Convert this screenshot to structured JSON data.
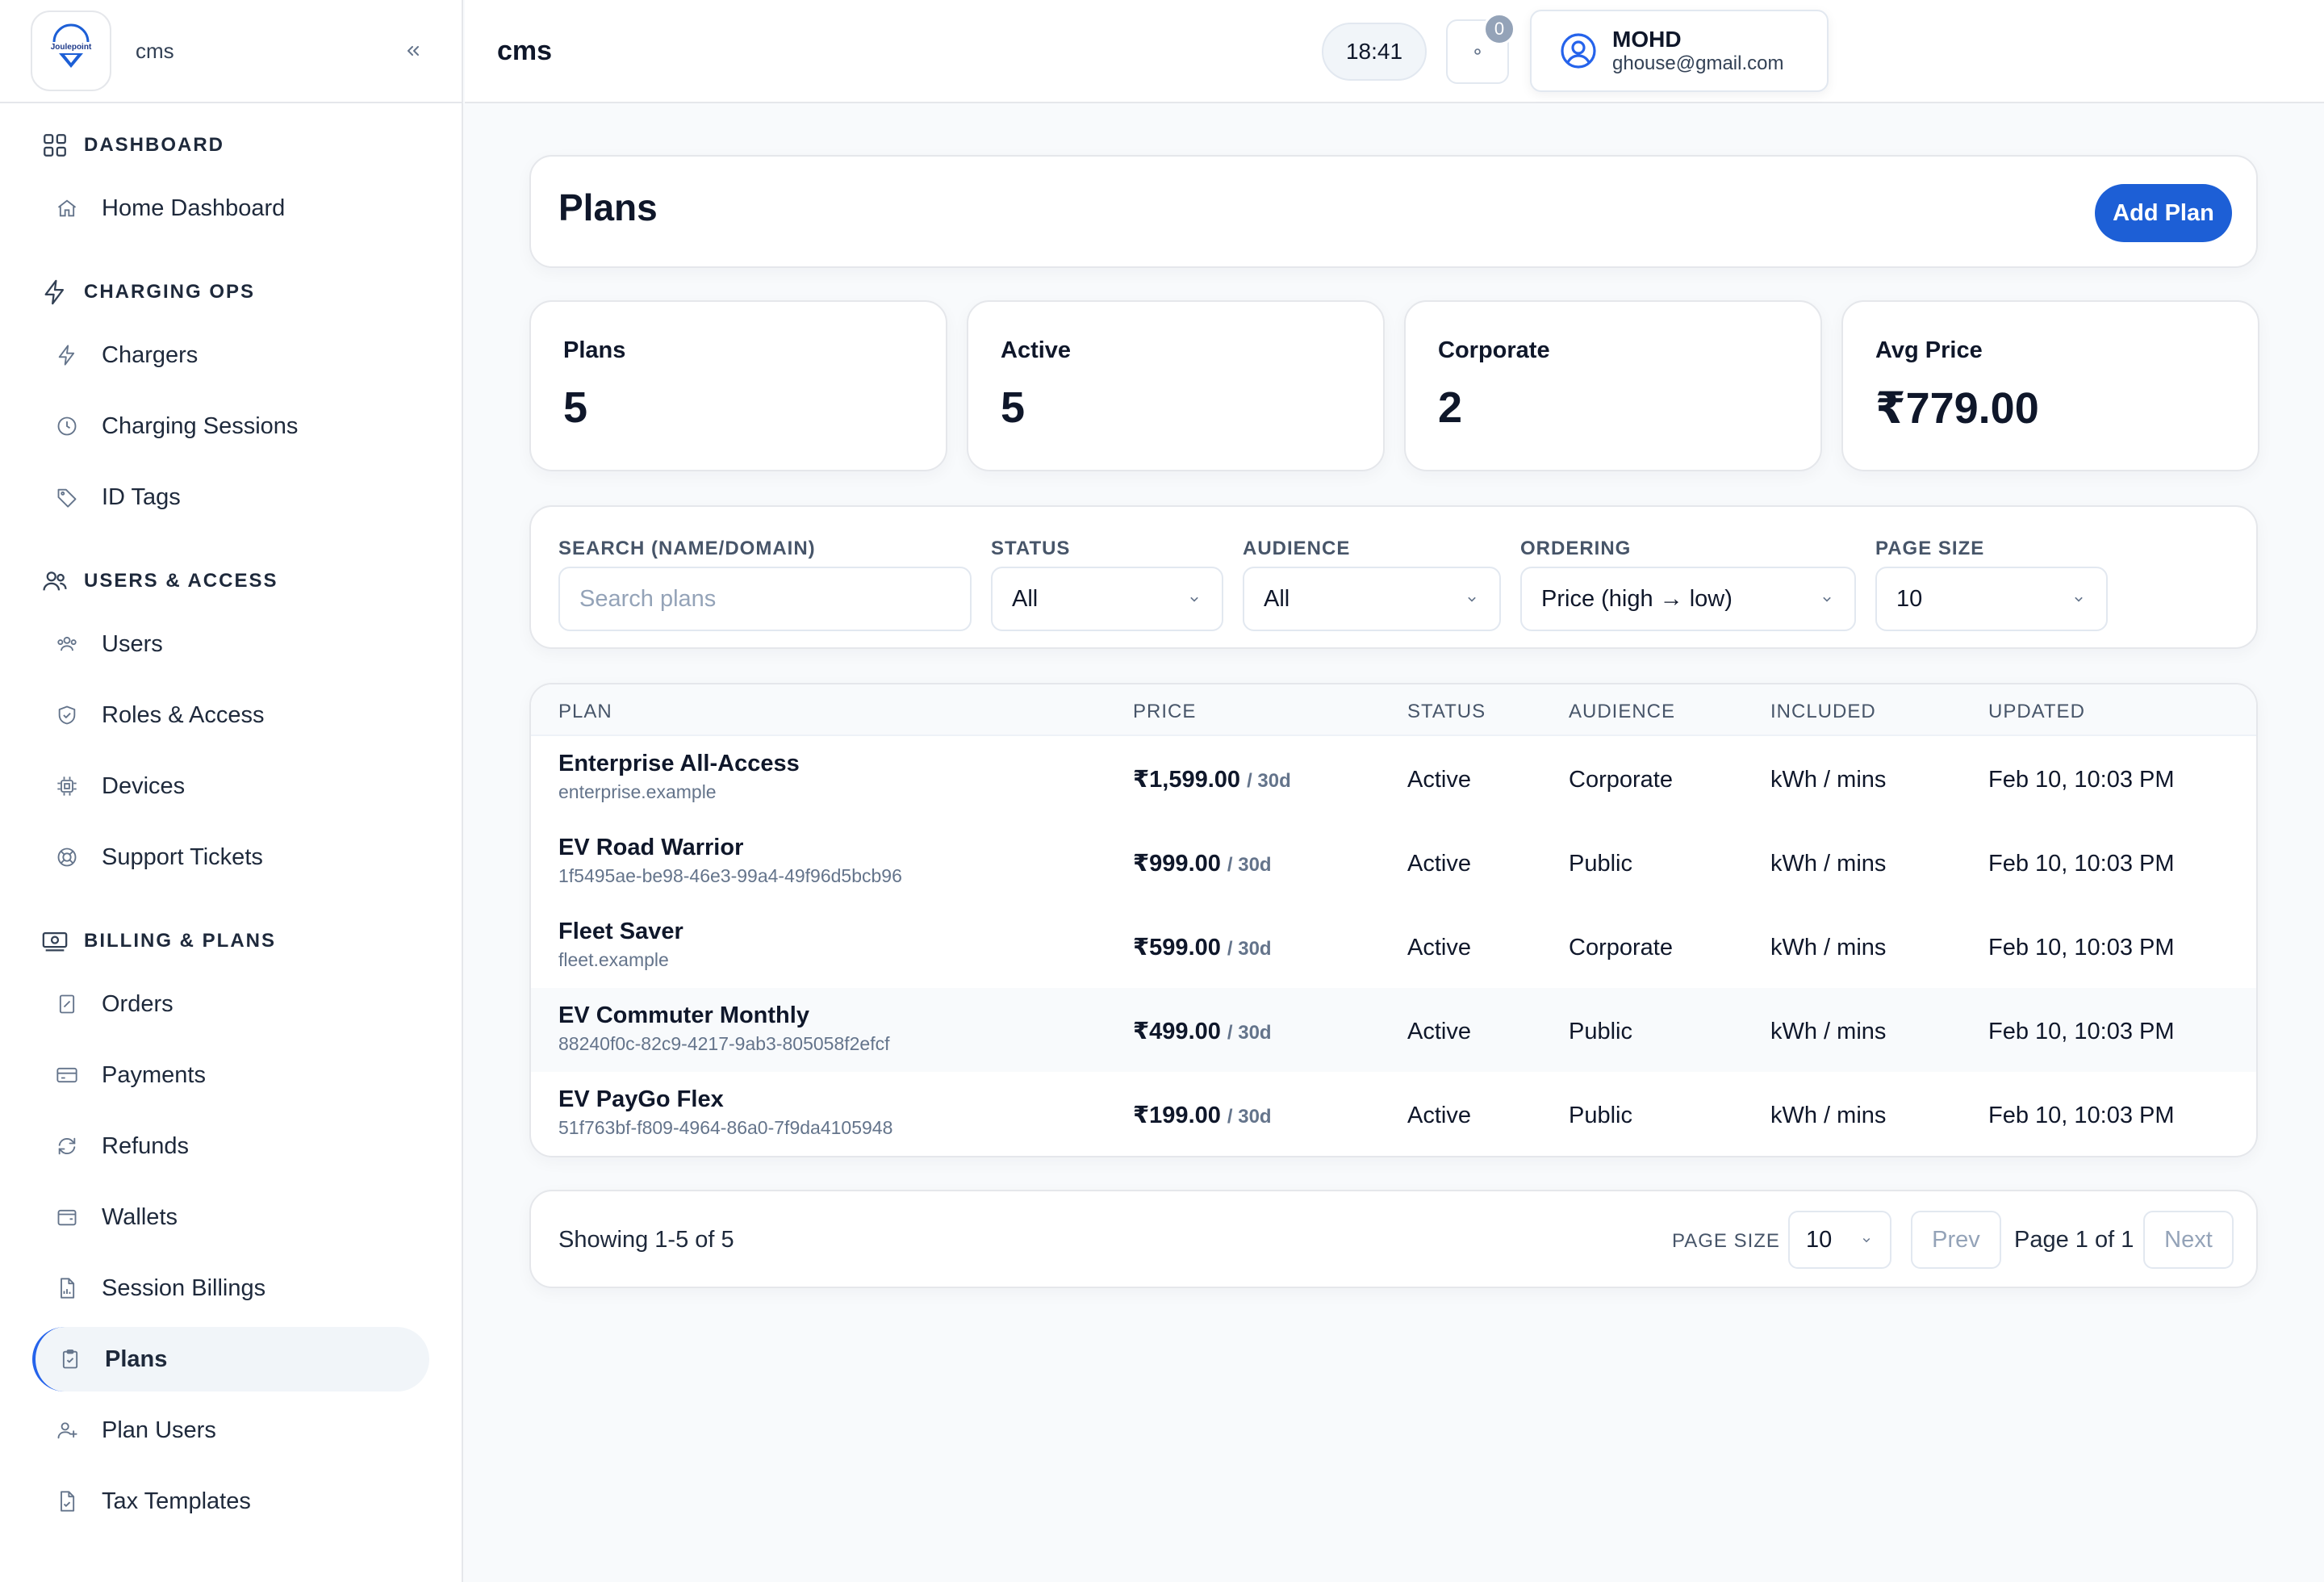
{
  "brand": {
    "logo_text": "Joulepoint",
    "name": "cms"
  },
  "sidebar": {
    "sections": [
      {
        "title": "DASHBOARD",
        "icon": "grid-icon",
        "items": [
          {
            "label": "Home Dashboard",
            "icon": "home-icon"
          }
        ]
      },
      {
        "title": "CHARGING OPS",
        "icon": "bolt-icon",
        "items": [
          {
            "label": "Chargers",
            "icon": "bolt-icon"
          },
          {
            "label": "Charging Sessions",
            "icon": "clock-icon"
          },
          {
            "label": "ID Tags",
            "icon": "tag-icon"
          }
        ]
      },
      {
        "title": "USERS & ACCESS",
        "icon": "users-icon",
        "items": [
          {
            "label": "Users",
            "icon": "users-icon"
          },
          {
            "label": "Roles & Access",
            "icon": "shield-icon"
          },
          {
            "label": "Devices",
            "icon": "chip-icon"
          },
          {
            "label": "Support Tickets",
            "icon": "lifebuoy-icon"
          }
        ]
      },
      {
        "title": "BILLING & PLANS",
        "icon": "cash-icon",
        "items": [
          {
            "label": "Orders",
            "icon": "receipt-icon"
          },
          {
            "label": "Payments",
            "icon": "card-icon"
          },
          {
            "label": "Refunds",
            "icon": "refresh-icon"
          },
          {
            "label": "Wallets",
            "icon": "wallet-icon"
          },
          {
            "label": "Session Billings",
            "icon": "file-chart-icon"
          },
          {
            "label": "Plans",
            "icon": "clipboard-icon",
            "active": true
          },
          {
            "label": "Plan Users",
            "icon": "user-plus-icon"
          },
          {
            "label": "Tax Templates",
            "icon": "file-check-icon"
          }
        ]
      }
    ]
  },
  "topbar": {
    "title": "cms",
    "time": "18:41",
    "notifications": "0",
    "user": {
      "name": "MOHD",
      "email": "ghouse@gmail.com"
    }
  },
  "header": {
    "title": "Plans",
    "add_label": "Add Plan"
  },
  "stats": [
    {
      "label": "Plans",
      "value": "5"
    },
    {
      "label": "Active",
      "value": "5"
    },
    {
      "label": "Corporate",
      "value": "2"
    },
    {
      "label": "Avg Price",
      "value": "₹779.00"
    }
  ],
  "filters": {
    "search": {
      "label": "SEARCH (NAME/DOMAIN)",
      "placeholder": "Search plans",
      "value": ""
    },
    "status": {
      "label": "STATUS",
      "value": "All"
    },
    "audience": {
      "label": "AUDIENCE",
      "value": "All"
    },
    "ordering": {
      "label": "ORDERING",
      "value": "Price (high → low)"
    },
    "page_size": {
      "label": "PAGE SIZE",
      "value": "10"
    }
  },
  "table": {
    "columns": [
      "PLAN",
      "PRICE",
      "STATUS",
      "AUDIENCE",
      "INCLUDED",
      "UPDATED"
    ],
    "rows": [
      {
        "name": "Enterprise All-Access",
        "sub": "enterprise.example",
        "price": "₹1,599.00",
        "period": "/ 30d",
        "status": "Active",
        "audience": "Corporate",
        "included": "kWh / mins",
        "updated": "Feb 10, 10:03 PM"
      },
      {
        "name": "EV Road Warrior",
        "sub": "1f5495ae-be98-46e3-99a4-49f96d5bcb96",
        "price": "₹999.00",
        "period": "/ 30d",
        "status": "Active",
        "audience": "Public",
        "included": "kWh / mins",
        "updated": "Feb 10, 10:03 PM"
      },
      {
        "name": "Fleet Saver",
        "sub": "fleet.example",
        "price": "₹599.00",
        "period": "/ 30d",
        "status": "Active",
        "audience": "Corporate",
        "included": "kWh / mins",
        "updated": "Feb 10, 10:03 PM"
      },
      {
        "name": "EV Commuter Monthly",
        "sub": "88240f0c-82c9-4217-9ab3-805058f2efcf",
        "price": "₹499.00",
        "period": "/ 30d",
        "status": "Active",
        "audience": "Public",
        "included": "kWh / mins",
        "updated": "Feb 10, 10:03 PM"
      },
      {
        "name": "EV PayGo Flex",
        "sub": "51f763bf-f809-4964-86a0-7f9da4105948",
        "price": "₹199.00",
        "period": "/ 30d",
        "status": "Active",
        "audience": "Public",
        "included": "kWh / mins",
        "updated": "Feb 10, 10:03 PM"
      }
    ]
  },
  "pagination": {
    "showing": "Showing 1-5 of 5",
    "page_size_label": "PAGE SIZE",
    "page_size": "10",
    "prev": "Prev",
    "page_info": "Page 1 of 1",
    "next": "Next"
  }
}
